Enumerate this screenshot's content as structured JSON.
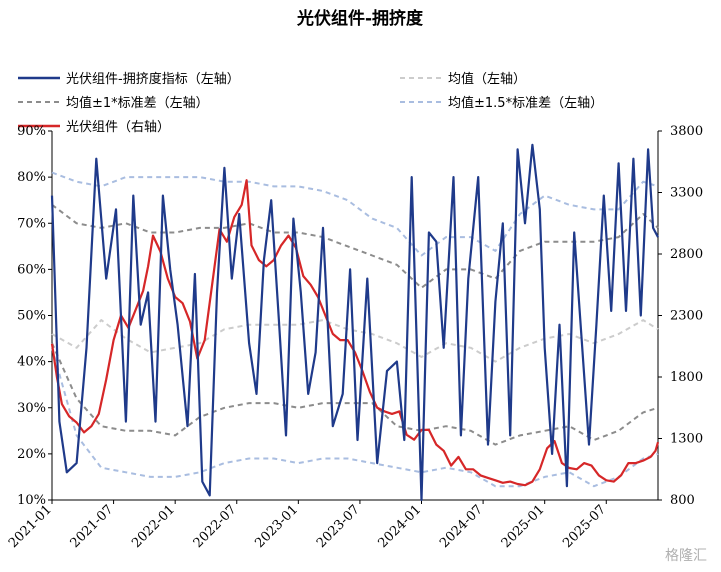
{
  "chart_data": {
    "type": "line",
    "title": "光伏组件-拥挤度",
    "x_labels": [
      "2021-01",
      "2021-07",
      "2022-01",
      "2022-07",
      "2023-01",
      "2023-07",
      "2024-01",
      "2024-07",
      "2025-01",
      "2025-07"
    ],
    "x_range": [
      "2021-01",
      "2025-11"
    ],
    "left_axis": {
      "ticks": [
        "90%",
        "80%",
        "70%",
        "60%",
        "50%",
        "40%",
        "30%",
        "20%",
        "10%"
      ],
      "ylim": [
        0.1,
        0.9
      ]
    },
    "right_axis": {
      "ticks": [
        "3800",
        "3300",
        "2800",
        "2300",
        "1800",
        "1300",
        "800"
      ],
      "ylim": [
        800,
        3800
      ]
    },
    "grid": false,
    "legend_position": "top",
    "watermark": "格隆汇",
    "series": [
      {
        "name": "光伏组件-拥挤度指标（左轴）",
        "axis": "left",
        "color": "#1f3a8a",
        "style": "solid",
        "x": [
          2021.0,
          2021.06,
          2021.12,
          2021.2,
          2021.28,
          2021.36,
          2021.44,
          2021.52,
          2021.6,
          2021.66,
          2021.72,
          2021.78,
          2021.84,
          2021.9,
          2021.96,
          2022.02,
          2022.1,
          2022.16,
          2022.22,
          2022.28,
          2022.34,
          2022.4,
          2022.46,
          2022.52,
          2022.6,
          2022.66,
          2022.72,
          2022.78,
          2022.84,
          2022.9,
          2022.96,
          2023.02,
          2023.08,
          2023.14,
          2023.2,
          2023.28,
          2023.36,
          2023.42,
          2023.48,
          2023.56,
          2023.64,
          2023.72,
          2023.8,
          2023.86,
          2023.92,
          2024.0,
          2024.06,
          2024.12,
          2024.18,
          2024.26,
          2024.32,
          2024.38,
          2024.46,
          2024.54,
          2024.6,
          2024.66,
          2024.72,
          2024.78,
          2024.84,
          2024.9,
          2024.96,
          2025.0,
          2025.06,
          2025.12,
          2025.18,
          2025.24,
          2025.3,
          2025.36,
          2025.42,
          2025.48,
          2025.54,
          2025.6,
          2025.66,
          2025.72,
          2025.78,
          2025.84,
          2025.88,
          2025.92
        ],
        "y": [
          0.76,
          0.27,
          0.16,
          0.18,
          0.43,
          0.84,
          0.58,
          0.73,
          0.27,
          0.76,
          0.48,
          0.55,
          0.27,
          0.76,
          0.6,
          0.48,
          0.26,
          0.59,
          0.14,
          0.11,
          0.55,
          0.82,
          0.58,
          0.72,
          0.44,
          0.33,
          0.62,
          0.75,
          0.5,
          0.24,
          0.71,
          0.55,
          0.33,
          0.42,
          0.69,
          0.26,
          0.33,
          0.6,
          0.23,
          0.58,
          0.18,
          0.38,
          0.4,
          0.23,
          0.8,
          0.1,
          0.68,
          0.66,
          0.43,
          0.8,
          0.24,
          0.58,
          0.8,
          0.22,
          0.53,
          0.7,
          0.24,
          0.86,
          0.7,
          0.87,
          0.73,
          0.43,
          0.2,
          0.48,
          0.13,
          0.68,
          0.45,
          0.22,
          0.48,
          0.76,
          0.51,
          0.83,
          0.51,
          0.84,
          0.5,
          0.86,
          0.69,
          0.67
        ]
      },
      {
        "name": "均值（左轴）",
        "axis": "left",
        "color": "#cccccc",
        "style": "dashed",
        "x": [
          2021.0,
          2021.2,
          2021.4,
          2021.6,
          2021.8,
          2022.0,
          2022.2,
          2022.4,
          2022.6,
          2022.8,
          2023.0,
          2023.2,
          2023.4,
          2023.6,
          2023.8,
          2024.0,
          2024.2,
          2024.4,
          2024.6,
          2024.8,
          2025.0,
          2025.2,
          2025.4,
          2025.6,
          2025.8,
          2025.92
        ],
        "y": [
          0.46,
          0.43,
          0.49,
          0.45,
          0.42,
          0.43,
          0.44,
          0.47,
          0.48,
          0.48,
          0.48,
          0.49,
          0.47,
          0.46,
          0.44,
          0.41,
          0.44,
          0.43,
          0.4,
          0.43,
          0.45,
          0.46,
          0.44,
          0.46,
          0.49,
          0.47
        ]
      },
      {
        "name": "均值±1*标准差（左轴）",
        "axis": "left",
        "color": "#8c8c8c",
        "style": "dashed",
        "x": [
          2021.0,
          2021.2,
          2021.4,
          2021.6,
          2021.8,
          2022.0,
          2022.2,
          2022.4,
          2022.6,
          2022.8,
          2023.0,
          2023.2,
          2023.4,
          2023.6,
          2023.8,
          2024.0,
          2024.2,
          2024.4,
          2024.6,
          2024.8,
          2025.0,
          2025.2,
          2025.4,
          2025.6,
          2025.8,
          2025.92
        ],
        "y": [
          0.74,
          0.7,
          0.69,
          0.7,
          0.68,
          0.68,
          0.69,
          0.69,
          0.7,
          0.68,
          0.68,
          0.67,
          0.65,
          0.63,
          0.61,
          0.56,
          0.6,
          0.6,
          0.58,
          0.64,
          0.66,
          0.66,
          0.66,
          0.67,
          0.72,
          0.69
        ],
        "y2": [
          0.44,
          0.32,
          0.26,
          0.25,
          0.25,
          0.24,
          0.28,
          0.3,
          0.31,
          0.31,
          0.3,
          0.31,
          0.31,
          0.31,
          0.26,
          0.25,
          0.26,
          0.25,
          0.22,
          0.24,
          0.25,
          0.26,
          0.23,
          0.25,
          0.29,
          0.3
        ]
      },
      {
        "name": "均值±1.5*标准差（左轴）",
        "axis": "left",
        "color": "#a9bde0",
        "style": "dashed",
        "x": [
          2021.0,
          2021.2,
          2021.4,
          2021.6,
          2021.8,
          2022.0,
          2022.2,
          2022.4,
          2022.6,
          2022.8,
          2023.0,
          2023.2,
          2023.4,
          2023.6,
          2023.8,
          2024.0,
          2024.2,
          2024.4,
          2024.6,
          2024.8,
          2025.0,
          2025.2,
          2025.4,
          2025.6,
          2025.8,
          2025.92
        ],
        "y": [
          0.81,
          0.79,
          0.78,
          0.8,
          0.8,
          0.8,
          0.8,
          0.79,
          0.79,
          0.78,
          0.78,
          0.77,
          0.75,
          0.71,
          0.69,
          0.63,
          0.67,
          0.67,
          0.64,
          0.72,
          0.76,
          0.74,
          0.73,
          0.73,
          0.79,
          0.78
        ],
        "y2": [
          0.43,
          0.24,
          0.17,
          0.16,
          0.15,
          0.15,
          0.16,
          0.18,
          0.19,
          0.19,
          0.18,
          0.19,
          0.19,
          0.18,
          0.17,
          0.16,
          0.17,
          0.16,
          0.13,
          0.13,
          0.15,
          0.16,
          0.13,
          0.15,
          0.19,
          0.2
        ]
      },
      {
        "name": "光伏组件（右轴）",
        "axis": "right",
        "color": "#d62728",
        "style": "solid",
        "x": [
          2021.0,
          2021.04,
          2021.08,
          2021.14,
          2021.2,
          2021.26,
          2021.32,
          2021.38,
          2021.44,
          2021.5,
          2021.56,
          2021.62,
          2021.68,
          2021.74,
          2021.78,
          2021.82,
          2021.88,
          2021.94,
          2022.0,
          2022.06,
          2022.12,
          2022.18,
          2022.24,
          2022.3,
          2022.36,
          2022.42,
          2022.48,
          2022.54,
          2022.58,
          2022.62,
          2022.68,
          2022.74,
          2022.8,
          2022.86,
          2022.92,
          2022.98,
          2023.04,
          2023.1,
          2023.16,
          2023.22,
          2023.28,
          2023.34,
          2023.4,
          2023.46,
          2023.52,
          2023.58,
          2023.64,
          2023.7,
          2023.76,
          2023.82,
          2023.88,
          2023.94,
          2024.0,
          2024.06,
          2024.12,
          2024.18,
          2024.24,
          2024.3,
          2024.36,
          2024.42,
          2024.48,
          2024.54,
          2024.6,
          2024.66,
          2024.72,
          2024.78,
          2024.84,
          2024.9,
          2024.96,
          2025.02,
          2025.08,
          2025.14,
          2025.2,
          2025.26,
          2025.32,
          2025.38,
          2025.44,
          2025.5,
          2025.56,
          2025.62,
          2025.68,
          2025.74,
          2025.8,
          2025.86,
          2025.9,
          2025.92
        ],
        "y": [
          2070,
          1800,
          1580,
          1480,
          1430,
          1350,
          1400,
          1500,
          1780,
          2100,
          2300,
          2200,
          2350,
          2500,
          2700,
          2950,
          2820,
          2600,
          2450,
          2400,
          2250,
          1950,
          2100,
          2550,
          3000,
          2900,
          3100,
          3200,
          3400,
          2870,
          2750,
          2700,
          2750,
          2870,
          2950,
          2850,
          2620,
          2550,
          2450,
          2300,
          2150,
          2100,
          2100,
          2000,
          1850,
          1680,
          1550,
          1520,
          1500,
          1520,
          1330,
          1290,
          1370,
          1370,
          1250,
          1200,
          1080,
          1150,
          1050,
          1050,
          1000,
          980,
          960,
          940,
          950,
          930,
          920,
          950,
          1050,
          1220,
          1280,
          1100,
          1060,
          1050,
          1100,
          1080,
          1000,
          960,
          950,
          1000,
          1100,
          1100,
          1120,
          1150,
          1200,
          1270
        ]
      }
    ]
  }
}
